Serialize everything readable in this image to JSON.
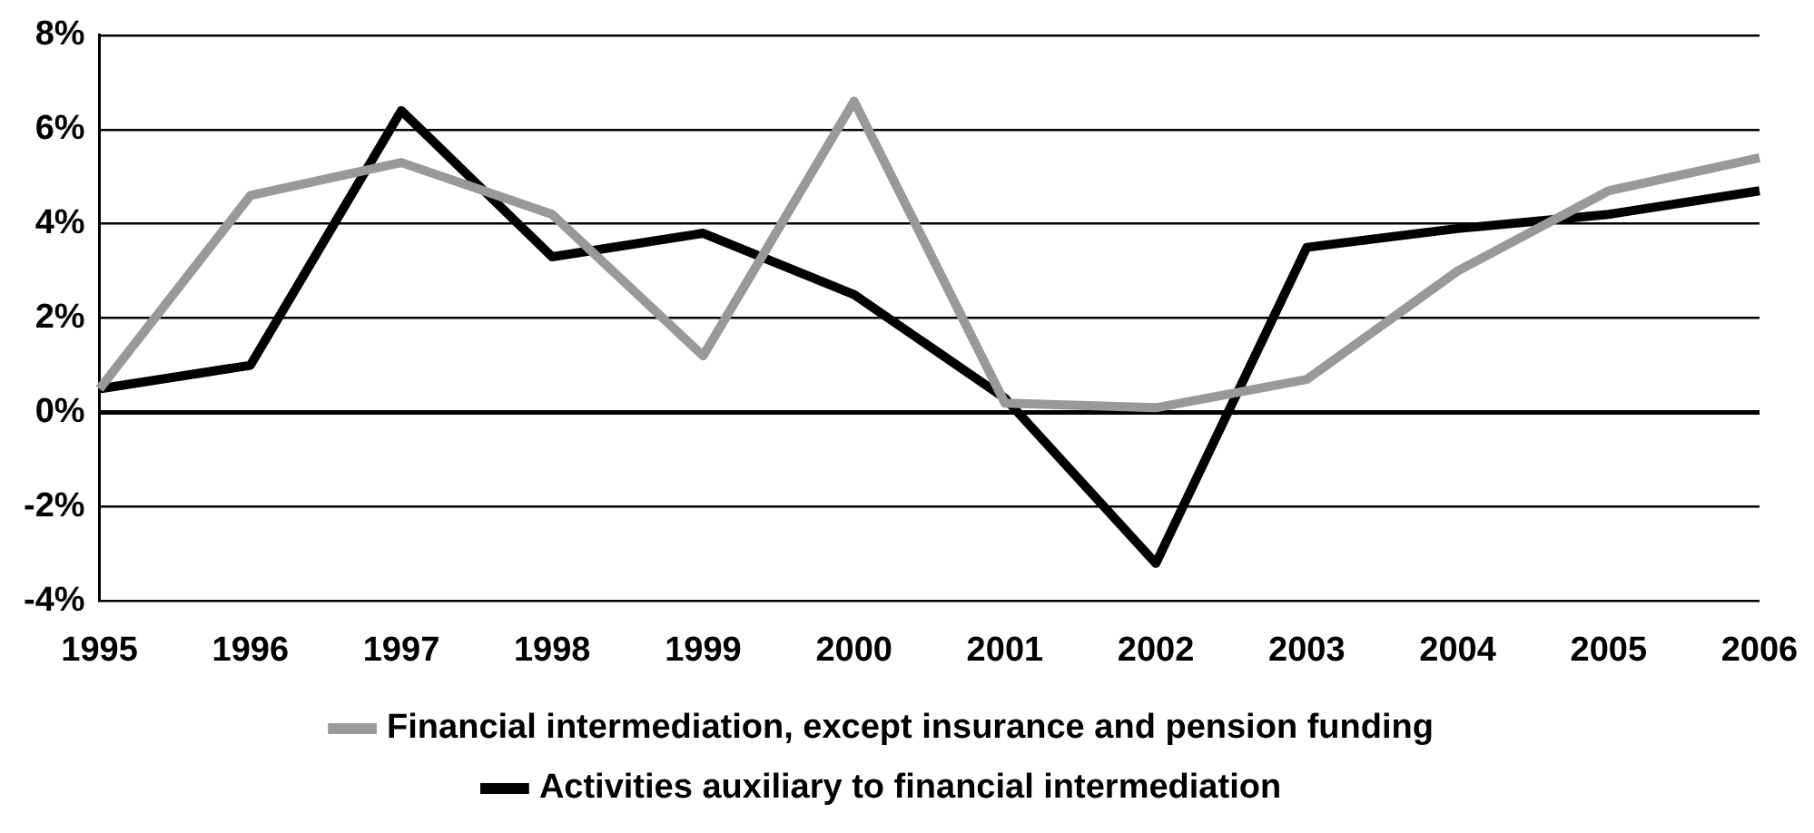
{
  "chart_data": {
    "type": "line",
    "categories": [
      "1995",
      "1996",
      "1997",
      "1998",
      "1999",
      "2000",
      "2001",
      "2002",
      "2003",
      "2004",
      "2005",
      "2006"
    ],
    "series": [
      {
        "name": "Financial intermediation, except insurance and pension funding",
        "color": "#999999",
        "values": [
          0.5,
          4.6,
          5.3,
          4.2,
          1.2,
          6.6,
          0.2,
          0.1,
          0.7,
          3.0,
          4.7,
          5.4
        ]
      },
      {
        "name": "Activities auxiliary to financial intermediation",
        "color": "#000000",
        "values": [
          0.5,
          1.0,
          6.4,
          3.3,
          3.8,
          2.5,
          0.3,
          -3.2,
          3.5,
          3.9,
          4.2,
          4.7
        ]
      }
    ],
    "ylim": [
      -4,
      8
    ],
    "yticks": [
      {
        "value": -4,
        "label": "-4%"
      },
      {
        "value": -2,
        "label": "-2%"
      },
      {
        "value": 0,
        "label": "0%"
      },
      {
        "value": 2,
        "label": "2%"
      },
      {
        "value": 4,
        "label": "4%"
      },
      {
        "value": 6,
        "label": "6%"
      },
      {
        "value": 8,
        "label": "8%"
      }
    ],
    "grid": "y",
    "legend": "bottom",
    "marker": "none",
    "line_style": "solid"
  }
}
